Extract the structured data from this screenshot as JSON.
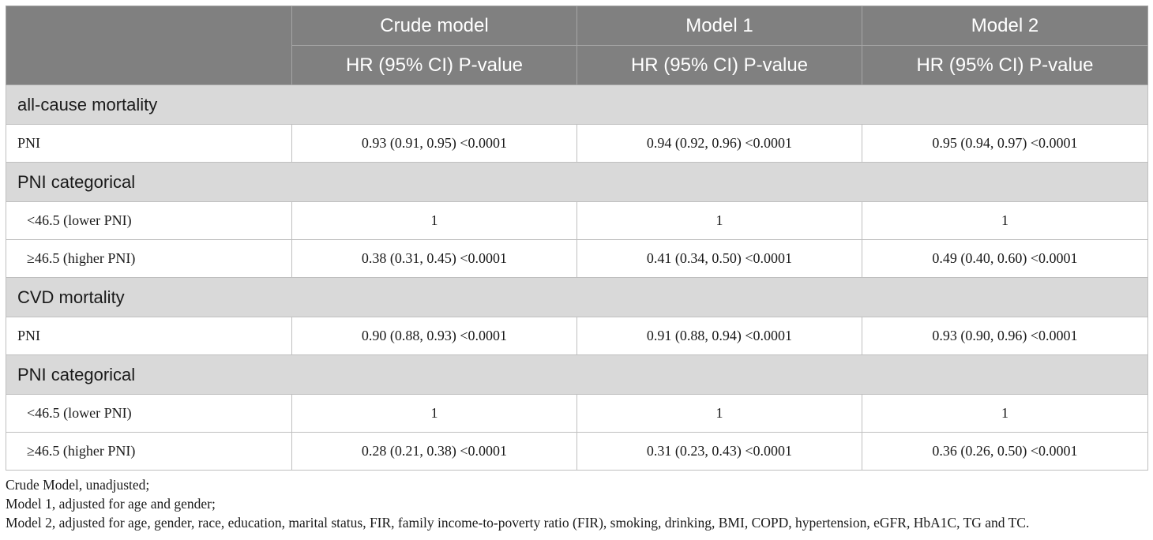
{
  "table": {
    "header_row1": [
      "",
      "Crude model",
      "Model 1",
      "Model 2"
    ],
    "header_row2": [
      "",
      "HR (95% CI) P-value",
      "HR (95% CI) P-value",
      "HR (95% CI) P-value"
    ],
    "rows": [
      {
        "type": "section",
        "label": "all-cause mortality"
      },
      {
        "type": "data",
        "indent": false,
        "label": "PNI",
        "cells": [
          "0.93 (0.91, 0.95) <0.0001",
          "0.94 (0.92, 0.96) <0.0001",
          "0.95 (0.94, 0.97) <0.0001"
        ]
      },
      {
        "type": "section",
        "label": "PNI categorical"
      },
      {
        "type": "data",
        "indent": true,
        "label": "<46.5 (lower PNI)",
        "cells": [
          "1",
          "1",
          "1"
        ]
      },
      {
        "type": "data",
        "indent": true,
        "label": "≥46.5 (higher PNI)",
        "cells": [
          "0.38 (0.31, 0.45) <0.0001",
          "0.41 (0.34, 0.50) <0.0001",
          "0.49 (0.40, 0.60) <0.0001"
        ]
      },
      {
        "type": "section",
        "label": "CVD mortality"
      },
      {
        "type": "data",
        "indent": false,
        "label": "PNI",
        "cells": [
          "0.90 (0.88, 0.93) <0.0001",
          "0.91 (0.88, 0.94) <0.0001",
          "0.93 (0.90, 0.96) <0.0001"
        ]
      },
      {
        "type": "section",
        "label": "PNI categorical"
      },
      {
        "type": "data",
        "indent": true,
        "label": "<46.5 (lower PNI)",
        "cells": [
          "1",
          "1",
          "1"
        ]
      },
      {
        "type": "data",
        "indent": true,
        "label": "≥46.5 (higher PNI)",
        "cells": [
          "0.28 (0.21, 0.38) <0.0001",
          "0.31 (0.23, 0.43) <0.0001",
          "0.36 (0.26, 0.50) <0.0001"
        ]
      }
    ]
  },
  "notes": [
    "Crude Model, unadjusted;",
    "Model 1, adjusted for age and gender;",
    "Model 2, adjusted for age, gender, race, education, marital status, FIR, family income-to-poverty ratio (FIR), smoking, drinking, BMI, COPD, hypertension, eGFR, HbA1C, TG and TC."
  ],
  "colors": {
    "header_bg": "#808080",
    "section_bg": "#d9d9d9",
    "border": "#bfbfbf"
  }
}
